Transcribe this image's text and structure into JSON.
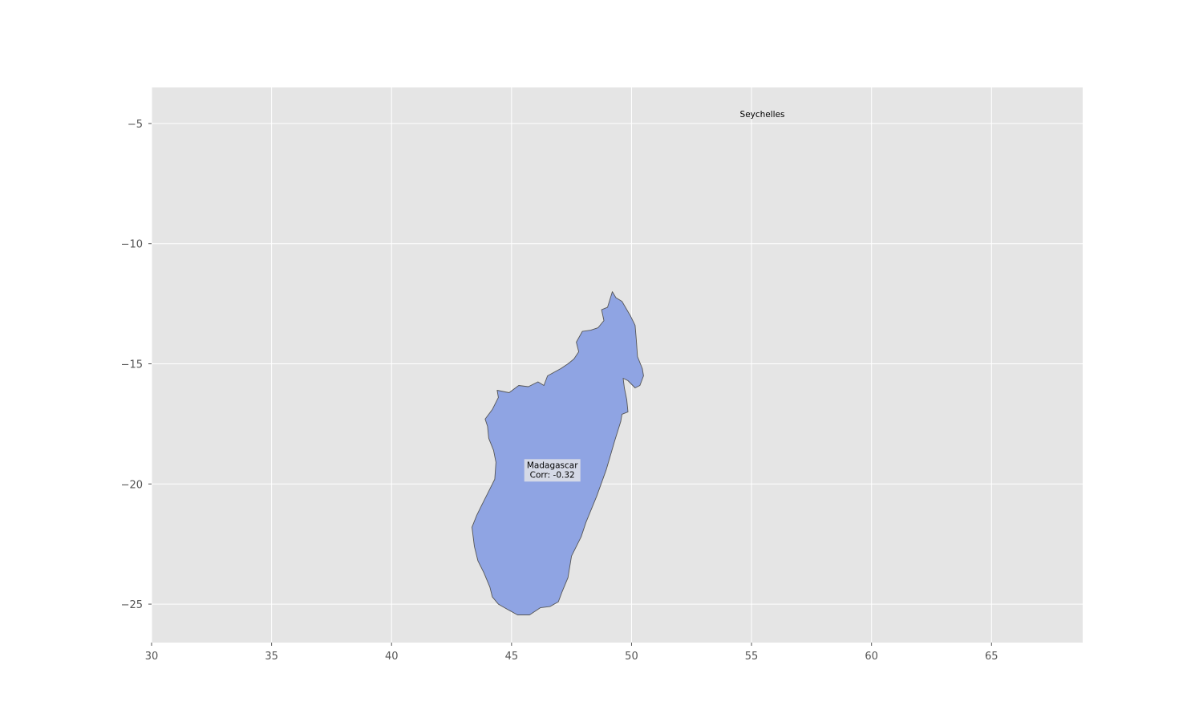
{
  "chart_data": {
    "type": "map",
    "title": "",
    "xlabel": "",
    "ylabel": "",
    "xlim": [
      30,
      68.8
    ],
    "ylim": [
      -26.6,
      -3.5
    ],
    "grid": true,
    "x_ticks": [
      30,
      35,
      40,
      45,
      50,
      55,
      60,
      65
    ],
    "x_tick_labels": [
      "30",
      "35",
      "40",
      "45",
      "50",
      "55",
      "60",
      "65"
    ],
    "y_ticks": [
      -5,
      -10,
      -15,
      -20,
      -25
    ],
    "y_tick_labels": [
      "−5",
      "−10",
      "−15",
      "−20",
      "−25"
    ],
    "colors": {
      "axes_background": "#e5e5e5",
      "grid": "#ffffff",
      "region_fill": "#8fa4e3",
      "region_edge": "#555555",
      "tick_text": "#555555"
    },
    "regions": [
      {
        "name": "Madagascar",
        "corr": -0.32,
        "label_line1": "Madagascar",
        "label_line2": "Corr: -0.32",
        "label_lon": 46.7,
        "label_lat": -19.4,
        "outline": [
          [
            49.2,
            -12.0
          ],
          [
            49.35,
            -12.25
          ],
          [
            49.6,
            -12.4
          ],
          [
            49.95,
            -13.0
          ],
          [
            50.15,
            -13.4
          ],
          [
            50.2,
            -14.0
          ],
          [
            50.25,
            -14.7
          ],
          [
            50.45,
            -15.2
          ],
          [
            50.5,
            -15.5
          ],
          [
            50.35,
            -15.9
          ],
          [
            50.15,
            -16.0
          ],
          [
            49.85,
            -15.7
          ],
          [
            49.65,
            -15.6
          ],
          [
            49.7,
            -16.0
          ],
          [
            49.8,
            -16.5
          ],
          [
            49.85,
            -17.0
          ],
          [
            49.6,
            -17.1
          ],
          [
            49.55,
            -17.4
          ],
          [
            49.3,
            -18.2
          ],
          [
            48.95,
            -19.4
          ],
          [
            48.55,
            -20.5
          ],
          [
            48.1,
            -21.6
          ],
          [
            47.9,
            -22.2
          ],
          [
            47.5,
            -23.0
          ],
          [
            47.35,
            -23.9
          ],
          [
            47.1,
            -24.5
          ],
          [
            46.95,
            -24.9
          ],
          [
            46.6,
            -25.1
          ],
          [
            46.2,
            -25.15
          ],
          [
            45.75,
            -25.45
          ],
          [
            45.25,
            -25.45
          ],
          [
            44.8,
            -25.2
          ],
          [
            44.45,
            -25.0
          ],
          [
            44.2,
            -24.7
          ],
          [
            44.1,
            -24.3
          ],
          [
            43.85,
            -23.7
          ],
          [
            43.6,
            -23.2
          ],
          [
            43.45,
            -22.6
          ],
          [
            43.35,
            -21.8
          ],
          [
            43.55,
            -21.3
          ],
          [
            43.75,
            -20.9
          ],
          [
            44.0,
            -20.4
          ],
          [
            44.3,
            -19.8
          ],
          [
            44.35,
            -19.1
          ],
          [
            44.25,
            -18.6
          ],
          [
            44.05,
            -18.1
          ],
          [
            44.0,
            -17.6
          ],
          [
            43.9,
            -17.3
          ],
          [
            44.2,
            -16.9
          ],
          [
            44.45,
            -16.4
          ],
          [
            44.4,
            -16.1
          ],
          [
            44.9,
            -16.2
          ],
          [
            45.3,
            -15.9
          ],
          [
            45.7,
            -15.95
          ],
          [
            46.1,
            -15.75
          ],
          [
            46.35,
            -15.9
          ],
          [
            46.5,
            -15.5
          ],
          [
            47.05,
            -15.2
          ],
          [
            47.35,
            -15.0
          ],
          [
            47.6,
            -14.8
          ],
          [
            47.8,
            -14.5
          ],
          [
            47.7,
            -14.1
          ],
          [
            47.95,
            -13.65
          ],
          [
            48.3,
            -13.6
          ],
          [
            48.6,
            -13.5
          ],
          [
            48.85,
            -13.2
          ],
          [
            48.75,
            -12.75
          ],
          [
            49.0,
            -12.65
          ],
          [
            49.2,
            -12.0
          ]
        ]
      },
      {
        "name": "Seychelles",
        "label_line1": "Seychelles",
        "label_lon": 55.45,
        "label_lat": -4.6
      }
    ]
  }
}
